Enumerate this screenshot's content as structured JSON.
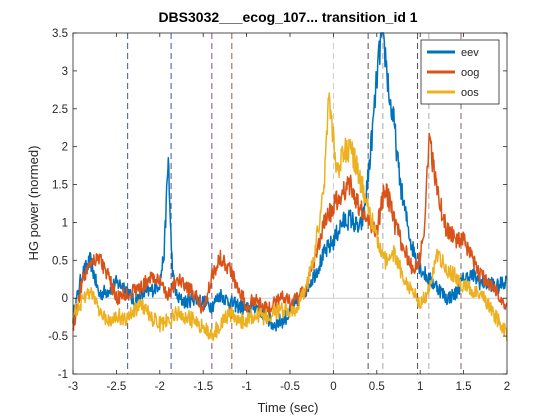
{
  "chart_data": {
    "type": "line",
    "title": "DBS3032___ecog_107... transition_id 1",
    "xlabel": "Time (sec)",
    "ylabel": "HG power (normed)",
    "xlim": [
      -3,
      2
    ],
    "ylim": [
      -1,
      3.5
    ],
    "xticks": [
      -3,
      -2.5,
      -2,
      -1.5,
      -1,
      -0.5,
      0,
      0.5,
      1,
      1.5,
      2
    ],
    "xtick_labels": [
      "-3",
      "-2.5",
      "-2",
      "-1.5",
      "-1",
      "-0.5",
      "0",
      "0.5",
      "1",
      "1.5",
      "2"
    ],
    "yticks": [
      -1,
      -0.5,
      0,
      0.5,
      1,
      1.5,
      2,
      2.5,
      3,
      3.5
    ],
    "ytick_labels": [
      "-1",
      "-0.5",
      "0",
      "0.5",
      "1",
      "1.5",
      "2",
      "2.5",
      "3",
      "3.5"
    ],
    "grid": false,
    "legend": "top-right",
    "baseline": 0,
    "vlines": [
      {
        "x": -2.37,
        "color": "#2c3e9e"
      },
      {
        "x": -1.87,
        "color": "#2c3e9e"
      },
      {
        "x": -1.4,
        "color": "#6a3d8f"
      },
      {
        "x": -1.17,
        "color": "#a33a3a"
      },
      {
        "x": 0.0,
        "color": "#c8c8c8"
      },
      {
        "x": 0.4,
        "color": "#404040"
      },
      {
        "x": 0.57,
        "color": "#a0a0a0"
      },
      {
        "x": 0.97,
        "color": "#404040"
      },
      {
        "x": 1.1,
        "color": "#a0a0a0"
      },
      {
        "x": 1.47,
        "color": "#7a4a4a"
      }
    ],
    "series": [
      {
        "name": "eev",
        "color": "#0072BD",
        "x": [
          -3,
          -2.9,
          -2.8,
          -2.7,
          -2.6,
          -2.5,
          -2.4,
          -2.3,
          -2.2,
          -2.1,
          -2.0,
          -1.95,
          -1.9,
          -1.88,
          -1.85,
          -1.8,
          -1.7,
          -1.6,
          -1.5,
          -1.4,
          -1.3,
          -1.2,
          -1.1,
          -1.0,
          -0.9,
          -0.8,
          -0.7,
          -0.6,
          -0.5,
          -0.4,
          -0.3,
          -0.2,
          -0.1,
          0.0,
          0.1,
          0.2,
          0.3,
          0.35,
          0.4,
          0.45,
          0.5,
          0.55,
          0.6,
          0.65,
          0.7,
          0.75,
          0.8,
          0.9,
          1.0,
          1.1,
          1.2,
          1.3,
          1.4,
          1.5,
          1.6,
          1.7,
          1.8,
          1.9,
          2.0
        ],
        "values": [
          -0.25,
          0.3,
          0.5,
          0.05,
          0.1,
          0.2,
          0.15,
          -0.05,
          0.05,
          0.1,
          0.2,
          0.6,
          1.9,
          1.0,
          0.3,
          0.0,
          -0.05,
          0.0,
          -0.05,
          -0.1,
          0.05,
          -0.05,
          -0.1,
          -0.15,
          -0.1,
          -0.2,
          -0.35,
          -0.3,
          -0.2,
          -0.05,
          0.15,
          0.35,
          0.6,
          0.75,
          1.0,
          1.05,
          0.9,
          1.1,
          1.6,
          2.2,
          2.9,
          3.45,
          3.2,
          2.6,
          2.3,
          1.7,
          1.3,
          0.7,
          0.4,
          0.25,
          0.15,
          0.0,
          0.05,
          0.25,
          0.3,
          0.2,
          0.2,
          0.15,
          0.25
        ]
      },
      {
        "name": "oog",
        "color": "#D95319",
        "x": [
          -3,
          -2.9,
          -2.8,
          -2.7,
          -2.6,
          -2.5,
          -2.4,
          -2.3,
          -2.2,
          -2.1,
          -2.0,
          -1.9,
          -1.8,
          -1.7,
          -1.6,
          -1.5,
          -1.4,
          -1.3,
          -1.2,
          -1.1,
          -1.0,
          -0.9,
          -0.8,
          -0.7,
          -0.6,
          -0.5,
          -0.4,
          -0.3,
          -0.2,
          -0.1,
          0.0,
          0.1,
          0.2,
          0.3,
          0.4,
          0.5,
          0.6,
          0.7,
          0.8,
          0.9,
          1.0,
          1.05,
          1.1,
          1.2,
          1.3,
          1.4,
          1.5,
          1.6,
          1.7,
          1.8,
          1.9,
          2.0
        ],
        "values": [
          -0.4,
          0.2,
          0.5,
          0.55,
          0.3,
          0.0,
          0.05,
          0.1,
          0.15,
          0.3,
          0.2,
          0.05,
          0.25,
          0.15,
          0.05,
          -0.15,
          0.3,
          0.55,
          0.4,
          0.15,
          -0.1,
          0.0,
          -0.15,
          -0.1,
          0.05,
          -0.05,
          0.0,
          0.15,
          0.6,
          1.0,
          1.2,
          1.4,
          1.5,
          1.2,
          1.0,
          0.9,
          1.5,
          1.0,
          0.7,
          0.4,
          0.5,
          1.0,
          2.1,
          1.4,
          0.9,
          0.8,
          0.75,
          0.5,
          0.3,
          0.2,
          0.05,
          -0.15
        ]
      },
      {
        "name": "oos",
        "color": "#EDB120",
        "x": [
          -3,
          -2.9,
          -2.8,
          -2.7,
          -2.6,
          -2.5,
          -2.4,
          -2.3,
          -2.2,
          -2.1,
          -2.0,
          -1.9,
          -1.8,
          -1.7,
          -1.6,
          -1.5,
          -1.4,
          -1.3,
          -1.2,
          -1.1,
          -1.0,
          -0.9,
          -0.8,
          -0.7,
          -0.6,
          -0.5,
          -0.4,
          -0.3,
          -0.2,
          -0.1,
          -0.05,
          0.0,
          0.05,
          0.1,
          0.2,
          0.3,
          0.4,
          0.5,
          0.6,
          0.7,
          0.8,
          0.9,
          1.0,
          1.1,
          1.2,
          1.3,
          1.4,
          1.5,
          1.6,
          1.7,
          1.8,
          1.9,
          2.0
        ],
        "values": [
          -0.2,
          -0.05,
          0.1,
          -0.15,
          -0.3,
          -0.2,
          -0.3,
          -0.15,
          -0.1,
          -0.25,
          -0.35,
          -0.3,
          -0.2,
          -0.25,
          -0.3,
          -0.4,
          -0.5,
          -0.35,
          -0.2,
          -0.3,
          -0.3,
          -0.2,
          -0.25,
          -0.2,
          -0.15,
          -0.2,
          -0.1,
          0.2,
          0.7,
          1.6,
          2.7,
          2.1,
          1.6,
          1.9,
          2.0,
          1.6,
          1.2,
          0.8,
          0.5,
          0.6,
          0.3,
          0.1,
          -0.05,
          0.1,
          0.6,
          0.4,
          0.3,
          0.15,
          0.1,
          0.05,
          -0.1,
          -0.3,
          -0.5
        ]
      }
    ]
  }
}
